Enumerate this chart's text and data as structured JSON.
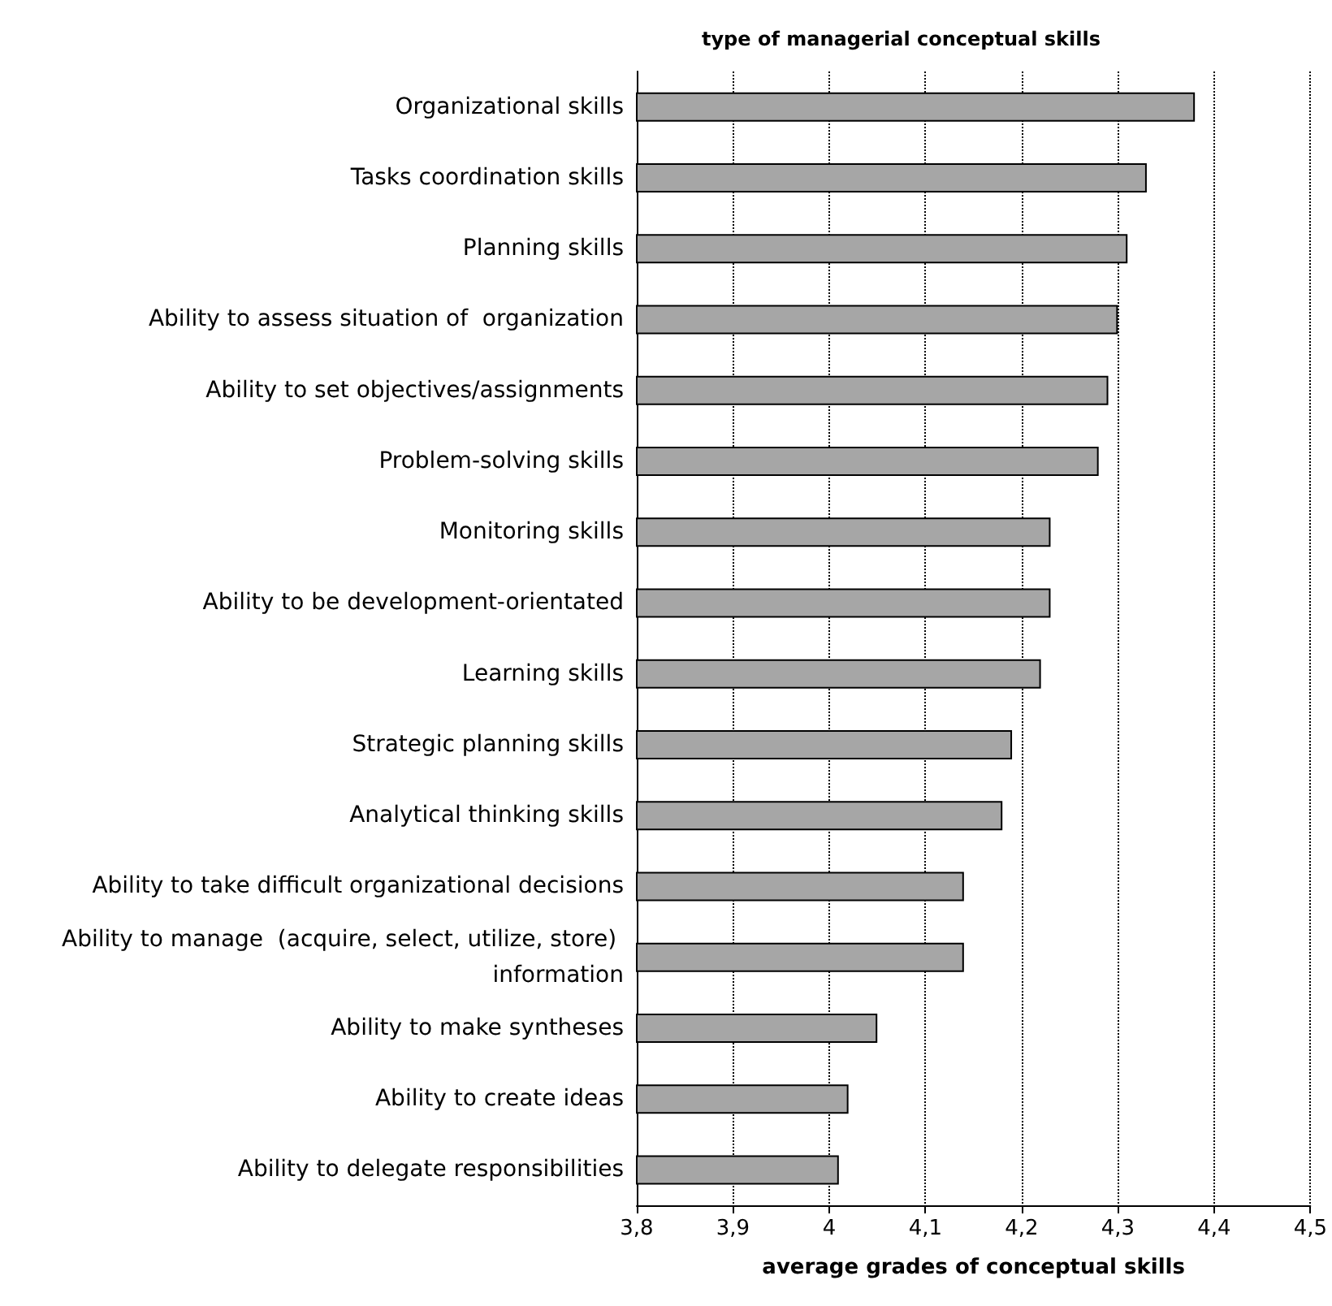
{
  "chart_data": {
    "type": "bar",
    "orientation": "horizontal",
    "ylabel": "type of managerial conceptual skills",
    "xlabel": "average grades of conceptual skills",
    "categories": [
      "Organizational skills",
      "Tasks coordination skills",
      "Planning skills",
      "Ability to assess situation of  organization",
      "Ability to set objectives/assignments",
      "Problem-solving skills",
      "Monitoring skills",
      "Ability to be development-orientated",
      "Learning skills",
      "Strategic planning skills",
      "Analytical thinking skills",
      "Ability to take difficult organizational decisions",
      "Ability to manage  (acquire, select, utilize, store) information",
      "Ability to make syntheses",
      "Ability to create ideas",
      "Ability to delegate responsibilities"
    ],
    "values": [
      4.38,
      4.33,
      4.31,
      4.3,
      4.29,
      4.28,
      4.23,
      4.23,
      4.22,
      4.19,
      4.18,
      4.14,
      4.14,
      4.05,
      4.02,
      4.01
    ],
    "color": "#a6a6a6",
    "xlim": [
      3.8,
      4.5
    ],
    "xticks": [
      {
        "value": 3.8,
        "label": "3,8"
      },
      {
        "value": 3.9,
        "label": "3,9"
      },
      {
        "value": 4,
        "label": "4"
      },
      {
        "value": 4.1,
        "label": "4,1"
      },
      {
        "value": 4.2,
        "label": "4,2"
      },
      {
        "value": 4.3,
        "label": "4,3"
      },
      {
        "value": 4.4,
        "label": "4,4"
      },
      {
        "value": 4.5,
        "label": "4,5"
      }
    ],
    "grid": "x"
  }
}
